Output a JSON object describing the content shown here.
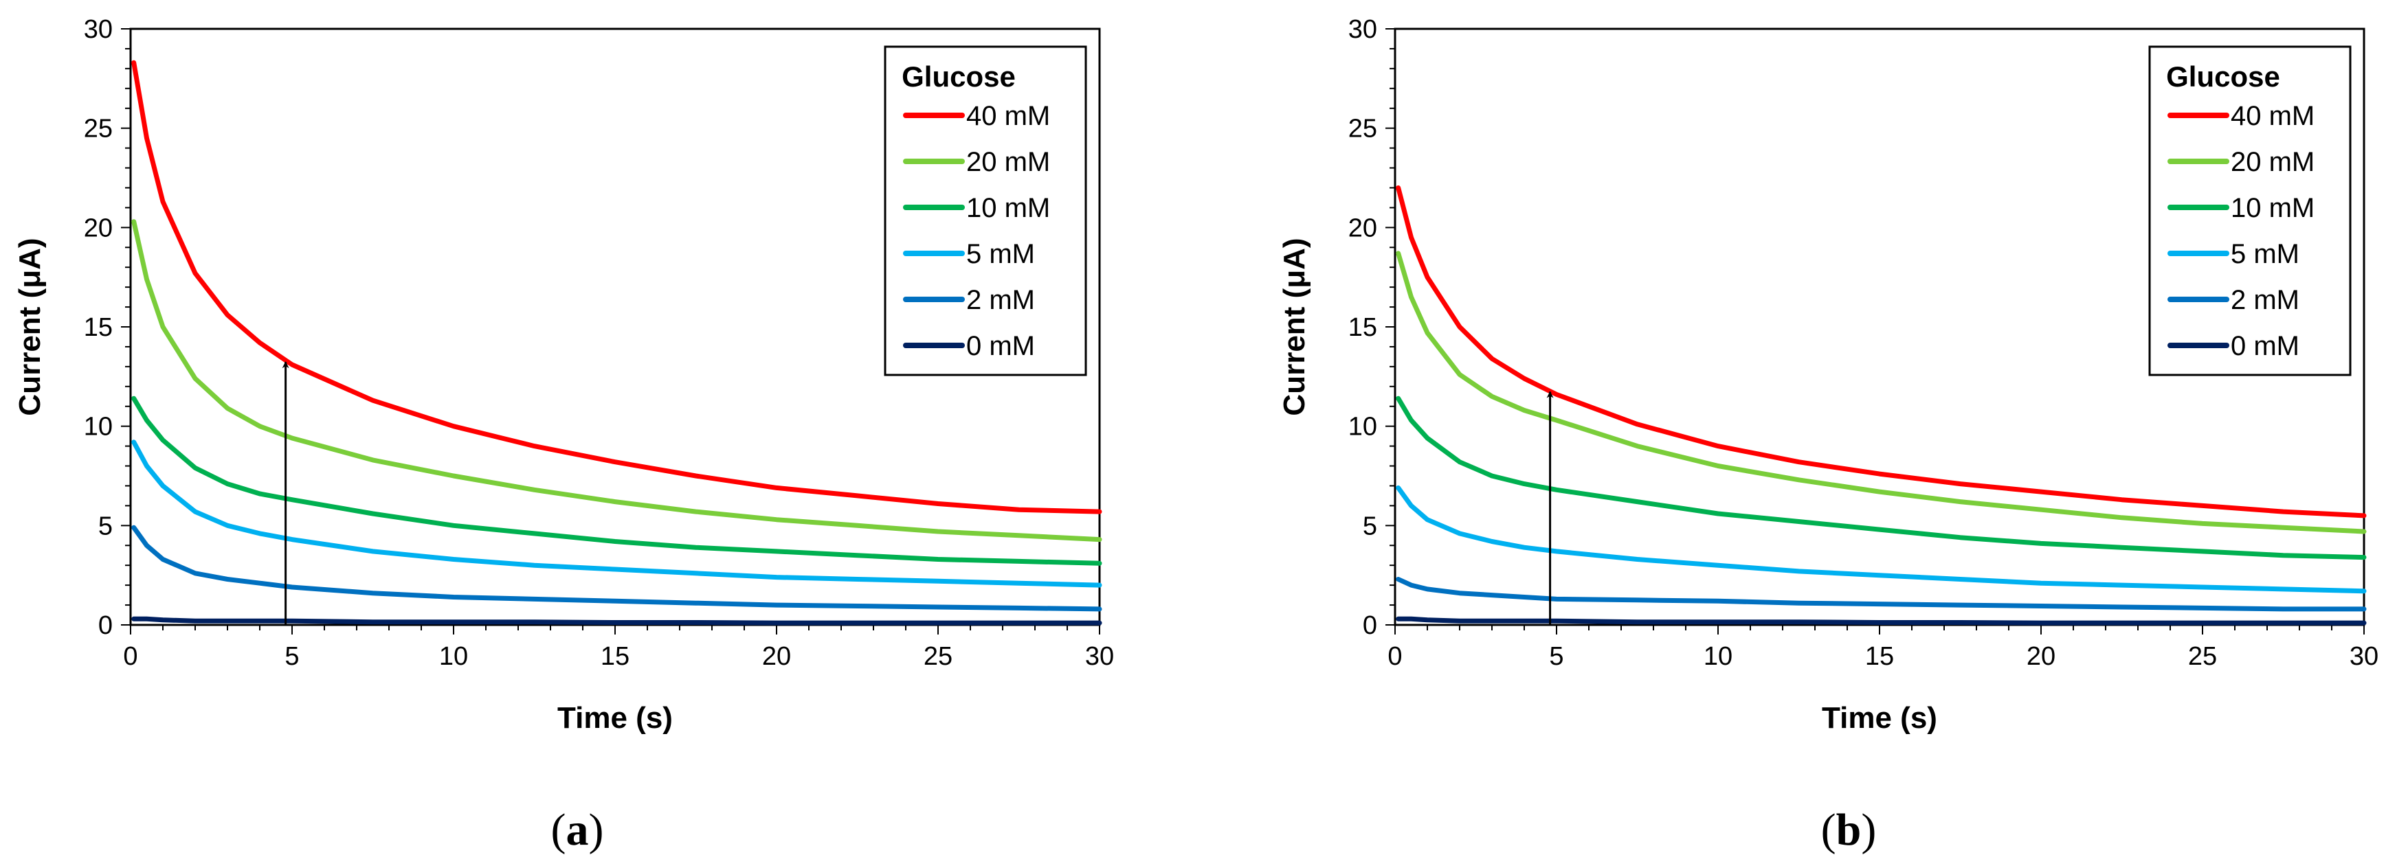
{
  "chart_data": [
    {
      "type": "line",
      "panel_label": {
        "open": "(",
        "letter": "a",
        "close": ")"
      },
      "title": "",
      "xlabel": "Time (s)",
      "ylabel": "Current (μA)",
      "xlim": [
        0,
        30
      ],
      "ylim": [
        0,
        30
      ],
      "xticks": [
        0,
        5,
        10,
        15,
        20,
        25,
        30
      ],
      "yticks": [
        0,
        5,
        10,
        15,
        20,
        25,
        30
      ],
      "grid": false,
      "legend": {
        "title": "Glucose",
        "position": "top-right"
      },
      "x": [
        0.1,
        0.5,
        1,
        2,
        3,
        4,
        5,
        7.5,
        10,
        12.5,
        15,
        17.5,
        20,
        22.5,
        25,
        27.5,
        30
      ],
      "series": [
        {
          "name": "40 mM",
          "color": "#FF0000",
          "values": [
            28.3,
            24.5,
            21.3,
            17.7,
            15.6,
            14.2,
            13.1,
            11.3,
            10.0,
            9.0,
            8.2,
            7.5,
            6.9,
            6.5,
            6.1,
            5.8,
            5.7
          ]
        },
        {
          "name": "20 mM",
          "color": "#7ACD3A",
          "values": [
            20.3,
            17.4,
            15.0,
            12.4,
            10.9,
            10.0,
            9.4,
            8.3,
            7.5,
            6.8,
            6.2,
            5.7,
            5.3,
            5.0,
            4.7,
            4.5,
            4.3
          ]
        },
        {
          "name": "10 mM",
          "color": "#00B050",
          "values": [
            11.4,
            10.3,
            9.3,
            7.9,
            7.1,
            6.6,
            6.3,
            5.6,
            5.0,
            4.6,
            4.2,
            3.9,
            3.7,
            3.5,
            3.3,
            3.2,
            3.1
          ]
        },
        {
          "name": "5 mM",
          "color": "#00B0F0",
          "values": [
            9.2,
            8.0,
            7.0,
            5.7,
            5.0,
            4.6,
            4.3,
            3.7,
            3.3,
            3.0,
            2.8,
            2.6,
            2.4,
            2.3,
            2.2,
            2.1,
            2.0
          ]
        },
        {
          "name": "2 mM",
          "color": "#0070C0",
          "values": [
            4.9,
            4.0,
            3.3,
            2.6,
            2.3,
            2.1,
            1.9,
            1.6,
            1.4,
            1.3,
            1.2,
            1.1,
            1.0,
            0.95,
            0.9,
            0.85,
            0.8
          ]
        },
        {
          "name": "0 mM",
          "color": "#002060",
          "values": [
            0.3,
            0.3,
            0.25,
            0.2,
            0.2,
            0.2,
            0.2,
            0.15,
            0.15,
            0.15,
            0.12,
            0.12,
            0.1,
            0.1,
            0.1,
            0.1,
            0.1
          ]
        }
      ],
      "annotations": [
        {
          "type": "arrow",
          "x": 4.8,
          "y_start": 0,
          "y_end": 13.3
        }
      ]
    },
    {
      "type": "line",
      "panel_label": {
        "open": "(",
        "letter": "b",
        "close": ")"
      },
      "title": "",
      "xlabel": "Time (s)",
      "ylabel": "Current (μA)",
      "xlim": [
        0,
        30
      ],
      "ylim": [
        0,
        30
      ],
      "xticks": [
        0,
        5,
        10,
        15,
        20,
        25,
        30
      ],
      "yticks": [
        0,
        5,
        10,
        15,
        20,
        25,
        30
      ],
      "grid": false,
      "legend": {
        "title": "Glucose",
        "position": "top-right"
      },
      "x": [
        0.1,
        0.5,
        1,
        2,
        3,
        4,
        5,
        7.5,
        10,
        12.5,
        15,
        17.5,
        20,
        22.5,
        25,
        27.5,
        30
      ],
      "series": [
        {
          "name": "40 mM",
          "color": "#FF0000",
          "values": [
            22.0,
            19.5,
            17.5,
            15.0,
            13.4,
            12.4,
            11.6,
            10.1,
            9.0,
            8.2,
            7.6,
            7.1,
            6.7,
            6.3,
            6.0,
            5.7,
            5.5
          ]
        },
        {
          "name": "20 mM",
          "color": "#7ACD3A",
          "values": [
            18.7,
            16.5,
            14.7,
            12.6,
            11.5,
            10.8,
            10.3,
            9.0,
            8.0,
            7.3,
            6.7,
            6.2,
            5.8,
            5.4,
            5.1,
            4.9,
            4.7
          ]
        },
        {
          "name": "10 mM",
          "color": "#00B050",
          "values": [
            11.4,
            10.3,
            9.4,
            8.2,
            7.5,
            7.1,
            6.8,
            6.2,
            5.6,
            5.2,
            4.8,
            4.4,
            4.1,
            3.9,
            3.7,
            3.5,
            3.4
          ]
        },
        {
          "name": "5 mM",
          "color": "#00B0F0",
          "values": [
            6.9,
            6.0,
            5.3,
            4.6,
            4.2,
            3.9,
            3.7,
            3.3,
            3.0,
            2.7,
            2.5,
            2.3,
            2.1,
            2.0,
            1.9,
            1.8,
            1.7
          ]
        },
        {
          "name": "2 mM",
          "color": "#0070C0",
          "values": [
            2.3,
            2.0,
            1.8,
            1.6,
            1.5,
            1.4,
            1.3,
            1.25,
            1.2,
            1.1,
            1.05,
            1.0,
            0.95,
            0.9,
            0.85,
            0.8,
            0.8
          ]
        },
        {
          "name": "0 mM",
          "color": "#002060",
          "values": [
            0.3,
            0.3,
            0.25,
            0.2,
            0.2,
            0.2,
            0.2,
            0.15,
            0.15,
            0.15,
            0.12,
            0.12,
            0.1,
            0.1,
            0.1,
            0.1,
            0.1
          ]
        }
      ],
      "annotations": [
        {
          "type": "arrow",
          "x": 4.8,
          "y_start": 0,
          "y_end": 11.8
        }
      ]
    }
  ]
}
